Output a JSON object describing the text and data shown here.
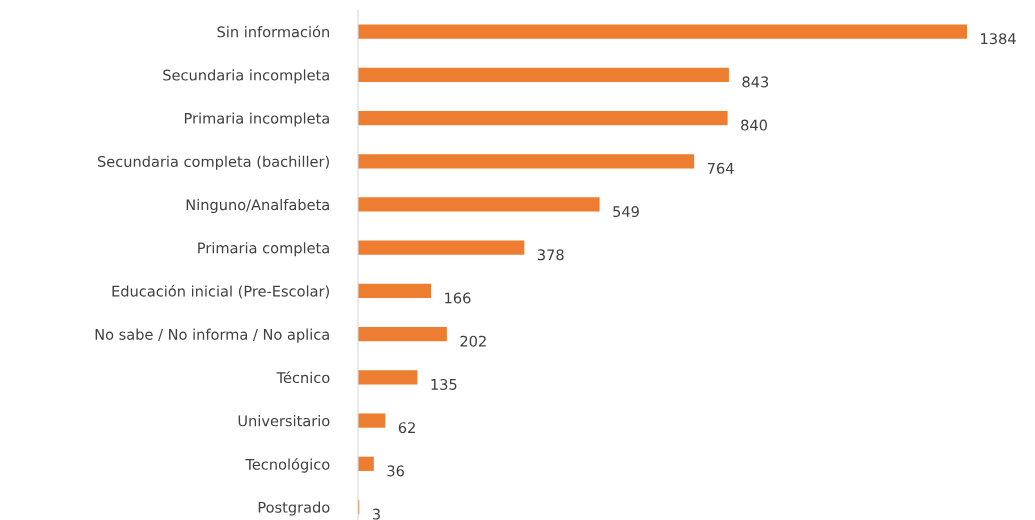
{
  "chart_data": {
    "type": "bar",
    "orientation": "horizontal",
    "categories": [
      "Sin información",
      "Secundaria incompleta",
      "Primaria incompleta",
      "Secundaria completa (bachiller)",
      "Ninguno/Analfabeta",
      "Primaria completa",
      "Educación inicial (Pre-Escolar)",
      "No sabe / No informa / No aplica",
      "Técnico",
      "Universitario",
      "Tecnológico",
      "Postgrado"
    ],
    "values": [
      1384,
      843,
      840,
      764,
      549,
      378,
      166,
      202,
      135,
      62,
      36,
      3
    ],
    "color": "#ed7d31",
    "data_labels": true,
    "grid": false,
    "legend": false
  }
}
